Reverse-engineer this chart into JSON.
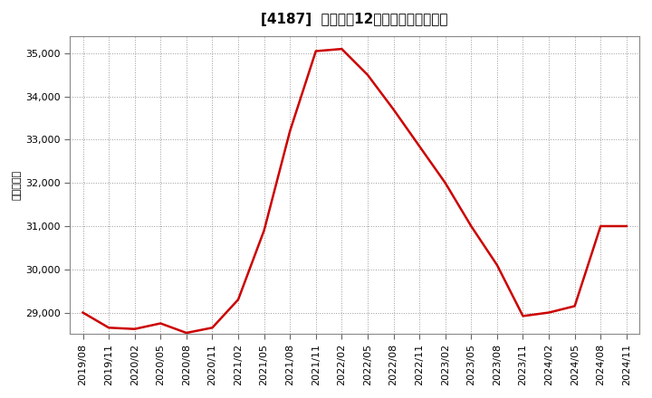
{
  "title": "[4187]  売上高の12か月移動合計の推移",
  "ylabel": "（百万円）",
  "line_color": "#cc0000",
  "bg_color": "#ffffff",
  "plot_bg_color": "#ffffff",
  "grid_color": "#999999",
  "ylim": [
    28500,
    35400
  ],
  "yticks": [
    29000,
    30000,
    31000,
    32000,
    33000,
    34000,
    35000
  ],
  "dates": [
    "2019/08",
    "2019/11",
    "2020/02",
    "2020/05",
    "2020/08",
    "2020/11",
    "2021/02",
    "2021/05",
    "2021/08",
    "2021/11",
    "2022/02",
    "2022/05",
    "2022/08",
    "2022/11",
    "2023/02",
    "2023/05",
    "2023/08",
    "2023/11",
    "2024/02",
    "2024/05",
    "2024/08",
    "2024/11"
  ],
  "values": [
    29000,
    28650,
    28620,
    28750,
    28530,
    28650,
    29300,
    30900,
    33200,
    35050,
    35100,
    34500,
    33700,
    32850,
    32000,
    31000,
    30100,
    28920,
    29000,
    29150,
    31000,
    31000
  ],
  "title_fontsize": 11,
  "axis_fontsize": 8,
  "ylabel_fontsize": 8
}
